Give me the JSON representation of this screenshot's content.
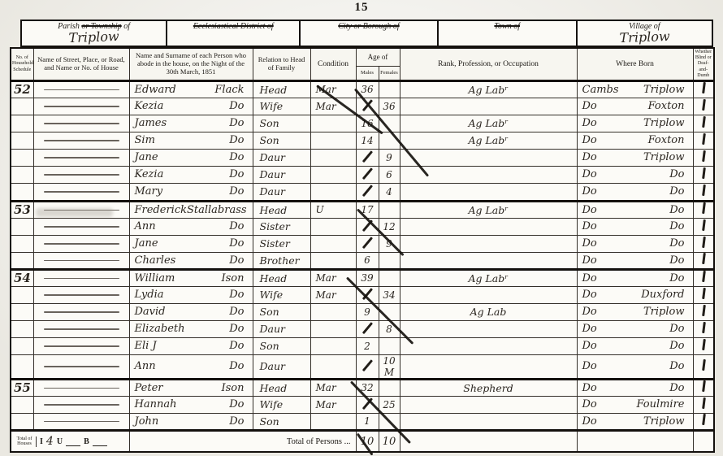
{
  "page": {
    "number": "15"
  },
  "colors": {
    "paper": "#fcfbf7",
    "ink": "#2b2620",
    "print": "#14110e"
  },
  "district": {
    "boxes": [
      {
        "pre": "Parish",
        "struck": "or Township",
        "post": "of",
        "value": "Triplow"
      },
      {
        "struck": "Ecclesiastical District of",
        "value": ""
      },
      {
        "struck": "City or Borough of",
        "value": ""
      },
      {
        "struck": "Town of",
        "value": ""
      },
      {
        "label": "Village of",
        "value": "Triplow"
      }
    ]
  },
  "table": {
    "columns": {
      "schedule": "No. of Householder's Schedule",
      "street": "Name of Street, Place, or Road, and Name or No. of House",
      "name": "Name and Surname of each Person who abode in the house, on the Night of the 30th March, 1851",
      "relation": "Relation to Head of Family",
      "condition": "Condition",
      "age": "Age of",
      "age_m": "Males",
      "age_f": "Females",
      "occupation": "Rank, Profession, or Occupation",
      "born": "Where Born",
      "remarks": "Whether Blind or Deaf-and-Dumb"
    },
    "rows": [
      {
        "schedule": "52",
        "name": "Edward Flack",
        "relation": "Head",
        "condition": "Mar",
        "age_m": "36",
        "age_f": "",
        "occupation": "Ag Labʳ",
        "born": "Cambs Triplow",
        "tick": true,
        "household_start": true
      },
      {
        "schedule": "",
        "name": "Kezia Do",
        "relation": "Wife",
        "condition": "Mar",
        "age_m": "",
        "age_f": "36",
        "occupation": "",
        "born": "Do Foxton",
        "tick": true
      },
      {
        "schedule": "",
        "name": "James Do",
        "relation": "Son",
        "condition": "",
        "age_m": "16",
        "age_f": "",
        "occupation": "Ag Labʳ",
        "born": "Do Triplow",
        "tick": true
      },
      {
        "schedule": "",
        "name": "Sim Do",
        "relation": "Son",
        "condition": "",
        "age_m": "14",
        "age_f": "",
        "occupation": "Ag Labʳ",
        "born": "Do Foxton",
        "tick": true
      },
      {
        "schedule": "",
        "name": "Jane Do",
        "relation": "Daur",
        "condition": "",
        "age_m": "",
        "age_f": "9",
        "occupation": "",
        "born": "Do Triplow",
        "tick": true
      },
      {
        "schedule": "",
        "name": "Kezia Do",
        "relation": "Daur",
        "condition": "",
        "age_m": "",
        "age_f": "6",
        "occupation": "",
        "born": "Do Do",
        "tick": true
      },
      {
        "schedule": "",
        "name": "Mary Do",
        "relation": "Daur",
        "condition": "",
        "age_m": "",
        "age_f": "4",
        "occupation": "",
        "born": "Do Do",
        "tick": true
      },
      {
        "schedule": "53",
        "name": "Frederick Stallabrass",
        "relation": "Head",
        "condition": "U",
        "age_m": "17",
        "age_f": "",
        "occupation": "Ag Labʳ",
        "born": "Do Do",
        "tick": true,
        "household_start": true
      },
      {
        "schedule": "",
        "name": "Ann Do",
        "relation": "Sister",
        "condition": "",
        "age_m": "",
        "age_f": "12",
        "occupation": "",
        "born": "Do Do",
        "tick": true
      },
      {
        "schedule": "",
        "name": "Jane Do",
        "relation": "Sister",
        "condition": "",
        "age_m": "",
        "age_f": "9",
        "occupation": "",
        "born": "Do Do",
        "tick": true
      },
      {
        "schedule": "",
        "name": "Charles Do",
        "relation": "Brother",
        "condition": "",
        "age_m": "6",
        "age_f": "",
        "occupation": "",
        "born": "Do Do",
        "tick": true
      },
      {
        "schedule": "54",
        "name": "William Ison",
        "relation": "Head",
        "condition": "Mar",
        "age_m": "39",
        "age_f": "",
        "occupation": "Ag Labʳ",
        "born": "Do Do",
        "tick": true,
        "household_start": true
      },
      {
        "schedule": "",
        "name": "Lydia Do",
        "relation": "Wife",
        "condition": "Mar",
        "age_m": "",
        "age_f": "34",
        "occupation": "",
        "born": "Do Duxford",
        "tick": true
      },
      {
        "schedule": "",
        "name": "David Do",
        "relation": "Son",
        "condition": "",
        "age_m": "9",
        "age_f": "",
        "occupation": "Ag Lab",
        "born": "Do Triplow",
        "tick": true
      },
      {
        "schedule": "",
        "name": "Elizabeth Do",
        "relation": "Daur",
        "condition": "",
        "age_m": "",
        "age_f": "8",
        "occupation": "",
        "born": "Do Do",
        "tick": true
      },
      {
        "schedule": "",
        "name": "Eli J Do",
        "relation": "Son",
        "condition": "",
        "age_m": "2",
        "age_f": "",
        "occupation": "",
        "born": "Do Do",
        "tick": true
      },
      {
        "schedule": "",
        "name": "Ann Do",
        "relation": "Daur",
        "condition": "",
        "age_m": "",
        "age_f": "10 M",
        "occupation": "",
        "born": "Do Do",
        "tick": true
      },
      {
        "schedule": "55",
        "name": "Peter Ison",
        "relation": "Head",
        "condition": "Mar",
        "age_m": "32",
        "age_f": "",
        "occupation": "Shepherd",
        "born": "Do Do",
        "tick": true,
        "household_start": true
      },
      {
        "schedule": "",
        "name": "Hannah Do",
        "relation": "Wife",
        "condition": "Mar",
        "age_m": "",
        "age_f": "25",
        "occupation": "",
        "born": "Do Foulmire",
        "tick": true
      },
      {
        "schedule": "",
        "name": "John Do",
        "relation": "Son",
        "condition": "",
        "age_m": "1",
        "age_f": "",
        "occupation": "",
        "born": "Do Triplow",
        "tick": true
      }
    ]
  },
  "footer": {
    "houses_label": "Total of Houses",
    "i_label": "I",
    "i_value": "4",
    "u_label": "U",
    "u_value": "",
    "b_label": "B",
    "b_value": "",
    "persons_label": "Total of Persons",
    "total_males": "10",
    "total_females": "10"
  }
}
